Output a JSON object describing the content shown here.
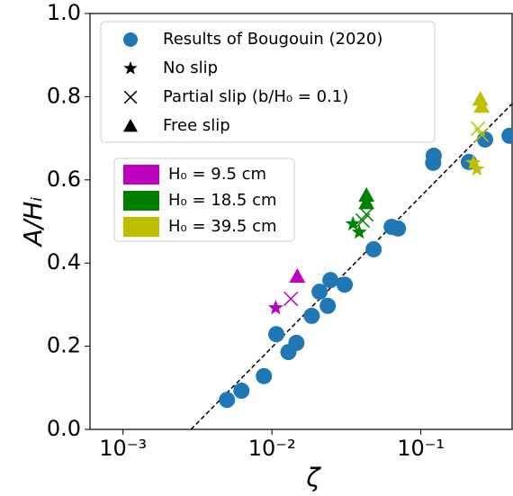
{
  "chart_data": {
    "type": "scatter",
    "xlabel": "ζ",
    "ylabel": "A/Hᵢ",
    "xscale": "log",
    "xlim": [
      0.0006,
      0.41
    ],
    "ylim": [
      0,
      1
    ],
    "xticks": [
      {
        "value": 0.001,
        "label": "10⁻³"
      },
      {
        "value": 0.01,
        "label": "10⁻²"
      },
      {
        "value": 0.1,
        "label": "10⁻¹"
      }
    ],
    "yticks": [
      {
        "value": 0,
        "label": "0.0"
      },
      0.2,
      0.4,
      0.6,
      0.8,
      {
        "value": 1,
        "label": "1.0"
      }
    ],
    "grid": false,
    "legend_loc": "upper left",
    "series": [
      {
        "name": "Results of Bougouin (2020)",
        "color": "#1f77b4",
        "marker": "circle",
        "x": [
          0.00499,
          0.00624,
          0.00883,
          0.0107,
          0.0129,
          0.0146,
          0.0185,
          0.0209,
          0.0237,
          0.0247,
          0.0308,
          0.0482,
          0.0637,
          0.0702,
          0.121,
          0.122,
          0.21,
          0.27,
          0.394
        ],
        "values": [
          0.071,
          0.093,
          0.128,
          0.229,
          0.186,
          0.208,
          0.273,
          0.331,
          0.297,
          0.359,
          0.348,
          0.433,
          0.487,
          0.483,
          0.641,
          0.658,
          0.643,
          0.697,
          0.706
        ]
      },
      {
        "name": "H₀ = 9.5 cm",
        "color": "#bf00bf",
        "markers": [
          "star",
          "cross",
          "triangle"
        ],
        "x": [
          0.0106,
          0.0134,
          0.0148
        ],
        "values": [
          0.292,
          0.314,
          0.368
        ]
      },
      {
        "name": "H₀ = 18.5 cm",
        "color": "#008000",
        "markers": [
          "star",
          "star",
          "cross",
          "cross",
          "triangle",
          "triangle"
        ],
        "x": [
          0.035,
          0.0386,
          0.0407,
          0.0431,
          0.0431,
          0.0431
        ],
        "values": [
          0.494,
          0.474,
          0.502,
          0.517,
          0.563,
          0.545
        ]
      },
      {
        "name": "H₀ = 39.5 cm",
        "color": "#bfbf00",
        "markers": [
          "star",
          "star",
          "cross",
          "cross",
          "triangle",
          "triangle"
        ],
        "x": [
          0.225,
          0.238,
          0.242,
          0.256,
          0.251,
          0.256
        ],
        "values": [
          0.641,
          0.626,
          0.723,
          0.708,
          0.794,
          0.777
        ]
      }
    ],
    "marker_legend": [
      {
        "name": "No slip",
        "marker": "star"
      },
      {
        "name": "Partial slip (b/H₀ = 0.1)",
        "marker": "cross"
      },
      {
        "name": "Free slip",
        "marker": "triangle"
      }
    ],
    "fit_line": {
      "color": "#000000",
      "x": [
        0.00286,
        0.41
      ],
      "values": [
        0,
        0.783
      ]
    }
  }
}
